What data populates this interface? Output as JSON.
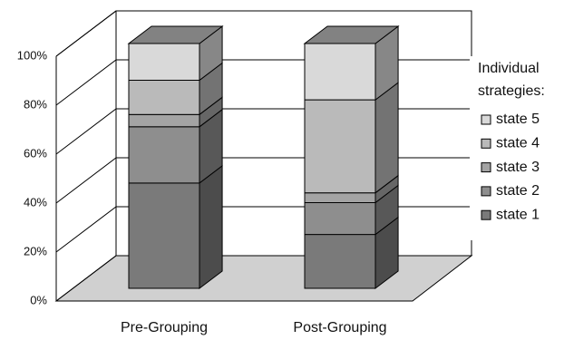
{
  "chart_data": {
    "type": "bar3d_stacked",
    "categories": [
      "Pre-Grouping",
      "Post-Grouping"
    ],
    "series": [
      {
        "name": "state 1",
        "color": "#7a7a7a",
        "values": [
          43,
          22
        ]
      },
      {
        "name": "state 2",
        "color": "#8e8e8e",
        "values": [
          23,
          13
        ]
      },
      {
        "name": "state 3",
        "color": "#a4a4a4",
        "values": [
          5,
          4
        ]
      },
      {
        "name": "state 4",
        "color": "#bababa",
        "values": [
          14,
          38
        ]
      },
      {
        "name": "state 5",
        "color": "#d9d9d9",
        "values": [
          15,
          23
        ]
      }
    ],
    "legend_title": [
      "Individual",
      "strategies:"
    ],
    "ylim": [
      0,
      100
    ],
    "yticks": [
      {
        "value": 0,
        "label": "0%"
      },
      {
        "value": 20,
        "label": "20%"
      },
      {
        "value": 40,
        "label": "40%"
      },
      {
        "value": 60,
        "label": "60%"
      },
      {
        "value": 80,
        "label": "80%"
      },
      {
        "value": 100,
        "label": "100%"
      }
    ],
    "grid": true
  }
}
